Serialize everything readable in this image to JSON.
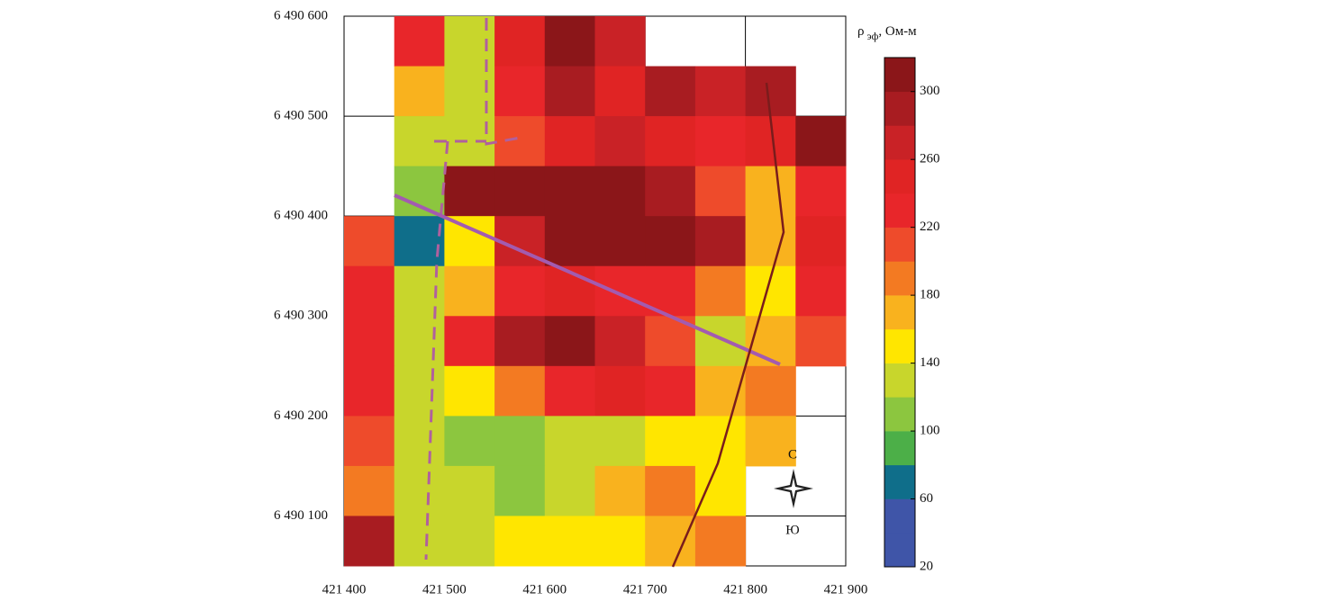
{
  "chart_data": {
    "type": "contour",
    "x": [
      421425,
      421475,
      421525,
      421575,
      421625,
      421675,
      421725,
      421775,
      421825,
      421875
    ],
    "y": [
      6490575,
      6490525,
      6490475,
      6490425,
      6490375,
      6490325,
      6490275,
      6490225,
      6490175,
      6490125,
      6490075
    ],
    "z": [
      [
        null,
        230,
        130,
        250,
        310,
        270,
        null,
        null,
        null,
        null
      ],
      [
        null,
        170,
        130,
        220,
        280,
        240,
        280,
        260,
        290,
        null
      ],
      [
        null,
        120,
        130,
        200,
        240,
        270,
        240,
        230,
        250,
        300
      ],
      [
        null,
        110,
        300,
        310,
        310,
        310,
        280,
        200,
        160,
        230
      ],
      [
        200,
        70,
        150,
        260,
        310,
        310,
        300,
        290,
        160,
        240
      ],
      [
        220,
        120,
        160,
        230,
        240,
        230,
        230,
        190,
        150,
        220
      ],
      [
        230,
        130,
        220,
        290,
        300,
        260,
        200,
        120,
        160,
        200
      ],
      [
        230,
        130,
        150,
        190,
        230,
        250,
        220,
        160,
        180,
        null
      ],
      [
        200,
        120,
        110,
        110,
        120,
        130,
        150,
        140,
        170,
        null
      ],
      [
        190,
        130,
        120,
        100,
        120,
        160,
        190,
        150,
        null,
        null
      ],
      [
        280,
        130,
        130,
        140,
        140,
        150,
        170,
        180,
        null,
        null
      ]
    ],
    "xlim": [
      421400,
      421900
    ],
    "ylim": [
      6490050,
      6490600
    ],
    "xticks": [
      {
        "value": 421400,
        "label": "421 400"
      },
      {
        "value": 421500,
        "label": "421 500"
      },
      {
        "value": 421600,
        "label": "421 600"
      },
      {
        "value": 421700,
        "label": "421 700"
      },
      {
        "value": 421800,
        "label": "421 800"
      },
      {
        "value": 421900,
        "label": "421 900"
      }
    ],
    "yticks": [
      {
        "value": 6490100,
        "label": "6 490 100"
      },
      {
        "value": 6490200,
        "label": "6 490 200"
      },
      {
        "value": 6490300,
        "label": "6 490 300"
      },
      {
        "value": 6490400,
        "label": "6 490 400"
      },
      {
        "value": 6490500,
        "label": "6 490 500"
      },
      {
        "value": 6490600,
        "label": "6 490 600"
      }
    ],
    "levels": [
      20,
      40,
      60,
      80,
      100,
      120,
      140,
      160,
      180,
      200,
      220,
      240,
      260,
      280,
      300,
      320
    ],
    "colors": [
      "#3f55a8",
      "#3f55a8",
      "#0f6e8a",
      "#4caf48",
      "#8cc63f",
      "#c8d62c",
      "#ffe600",
      "#f9b21e",
      "#f37a22",
      "#ee4b2b",
      "#e8262a",
      "#e02424",
      "#c92226",
      "#a81c21",
      "#8b1619"
    ],
    "colorbar_ticks": [
      20,
      60,
      100,
      140,
      180,
      220,
      260,
      300
    ],
    "colorbar_label": {
      "symbol": "ρ",
      "subscript": "эф",
      "unit": ", Ом-м"
    },
    "north": "С",
    "south": "Ю",
    "grid": true
  }
}
